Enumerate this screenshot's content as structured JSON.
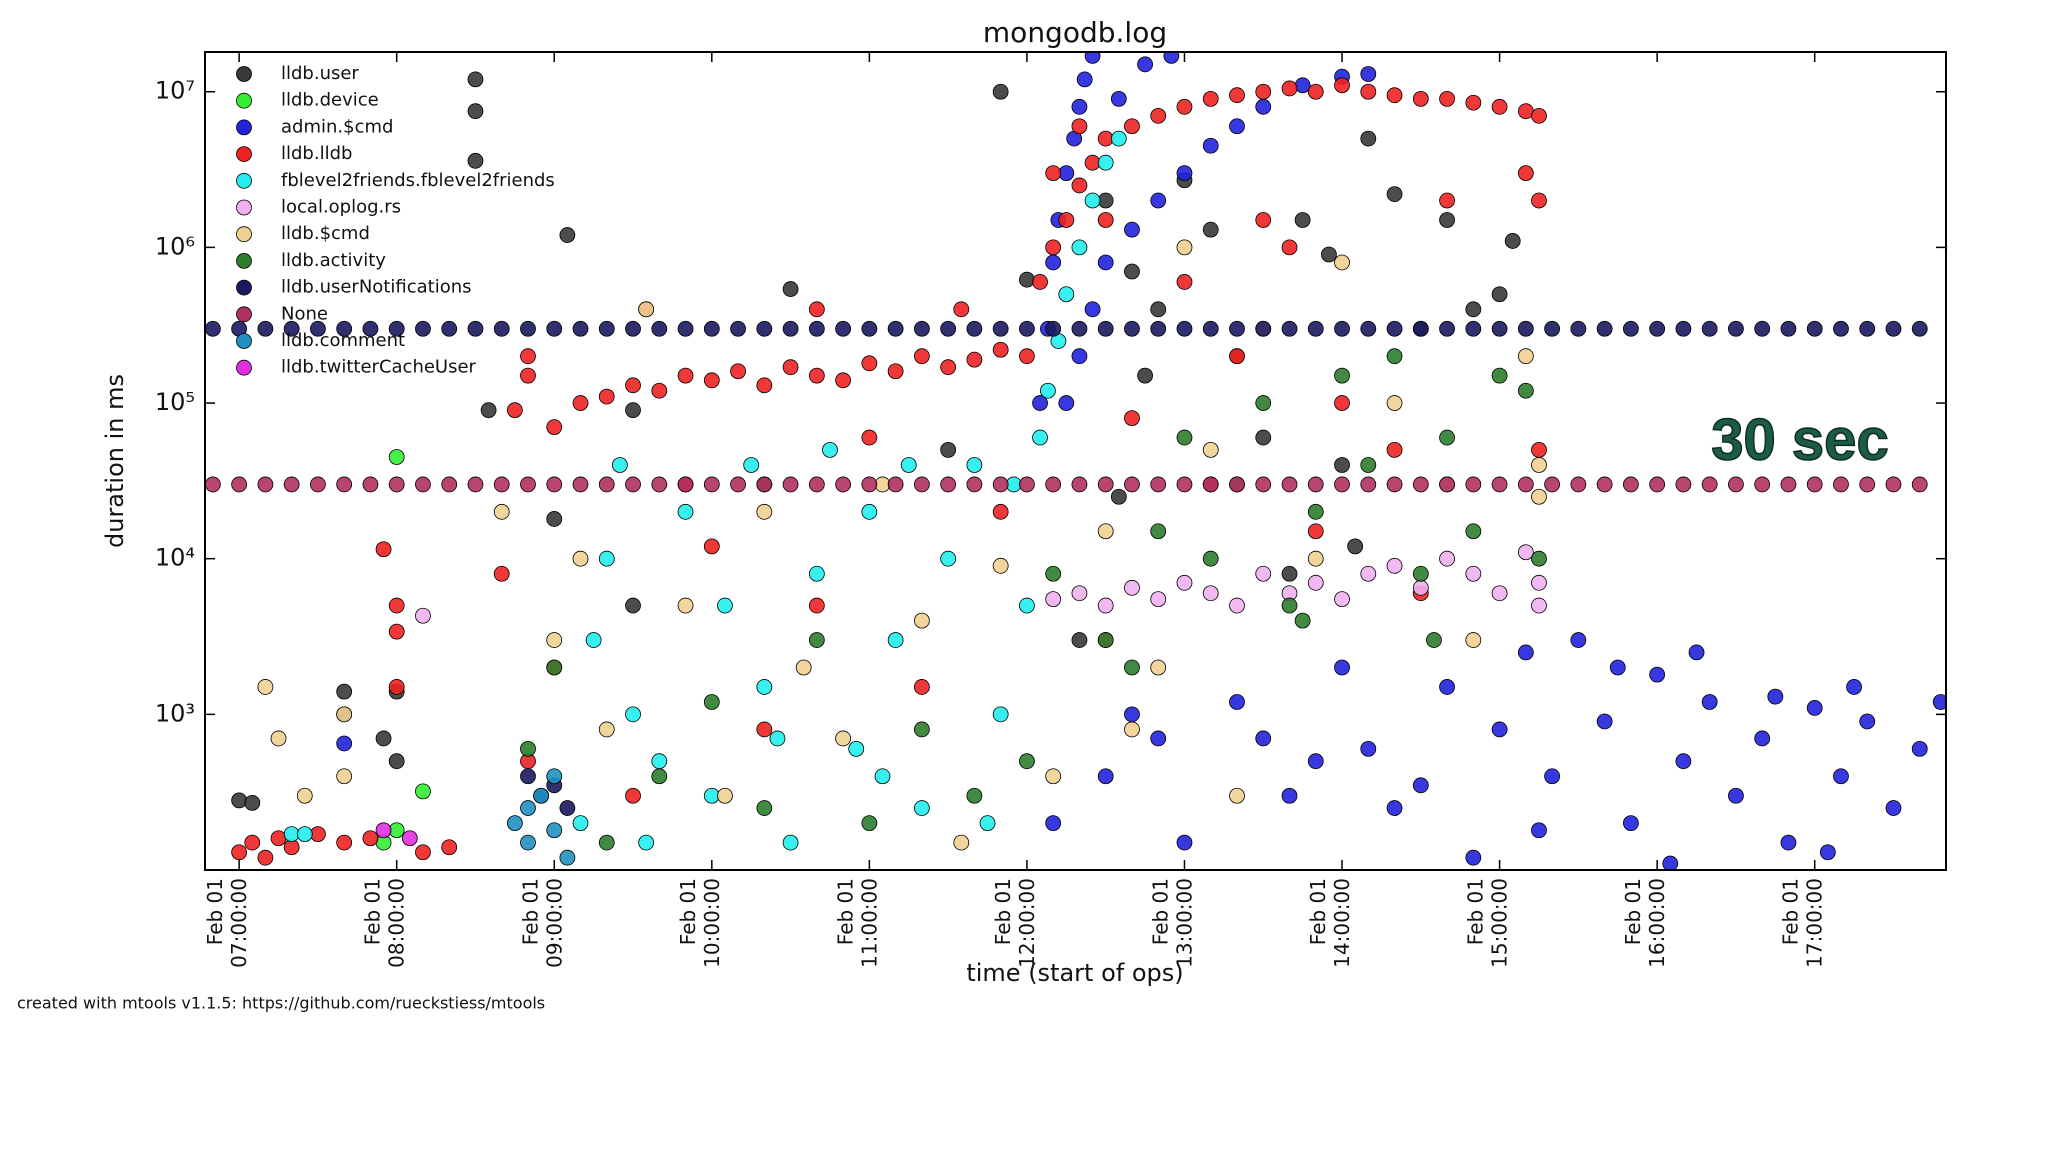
{
  "chart_data": {
    "type": "scatter",
    "title": "mongodb.log",
    "xlabel": "time (start of ops)",
    "ylabel": "duration in ms",
    "annotation": "30 sec",
    "footer": "created with mtools v1.1.5: https://github.com/rueckstiess/mtools",
    "yscale": "log",
    "legend": "upper left",
    "xlim": [
      "Feb 01 06:47:00",
      "Feb 01 17:50:00"
    ],
    "xticks": [
      "Feb 01 07:00:00",
      "Feb 01 08:00:00",
      "Feb 01 09:00:00",
      "Feb 01 10:00:00",
      "Feb 01 11:00:00",
      "Feb 01 12:00:00",
      "Feb 01 13:00:00",
      "Feb 01 14:00:00",
      "Feb 01 15:00:00",
      "Feb 01 16:00:00",
      "Feb 01 17:00:00"
    ],
    "ylim": [
      100,
      18000000
    ],
    "yticks": [
      {
        "value": 1000,
        "label": "10³"
      },
      {
        "value": 10000,
        "label": "10⁴"
      },
      {
        "value": 100000,
        "label": "10⁵"
      },
      {
        "value": 1000000,
        "label": "10⁶"
      },
      {
        "value": 10000000,
        "label": "10⁷"
      }
    ],
    "series": [
      {
        "name": "lldb.user",
        "color": "#383838",
        "x": [
          "07:00",
          "07:05",
          "07:40",
          "07:40",
          "07:55",
          "08:00",
          "08:00",
          "08:30",
          "08:30",
          "08:30",
          "09:05",
          "08:35",
          "09:00",
          "09:30",
          "10:30",
          "11:50",
          "12:00",
          "12:30",
          "12:40",
          "13:00",
          "12:50",
          "13:10",
          "13:45",
          "13:55",
          "14:10",
          "14:20",
          "14:30",
          "13:20",
          "12:45",
          "13:30",
          "14:00",
          "12:35",
          "14:40",
          "15:00",
          "15:05",
          "14:05",
          "13:40",
          "12:20",
          "14:50",
          "09:30",
          "10:20",
          "11:30"
        ],
        "values": [
          280,
          270,
          1400,
          1000,
          700,
          1400,
          500,
          12000000,
          7500000,
          3600000,
          1200000,
          90000,
          18000,
          5000,
          540000,
          10000000,
          620000,
          2000000,
          700000,
          2700000,
          400000,
          1300000,
          1500000,
          900000,
          5000000,
          2200000,
          300000,
          200000,
          150000,
          60000,
          40000,
          25000,
          1500000,
          500000,
          1100000,
          12000,
          8000,
          3000,
          400000,
          90000,
          30000,
          50000
        ]
      },
      {
        "name": "lldb.device",
        "color": "#33ee33",
        "x": [
          "08:00",
          "08:10",
          "08:00",
          "07:55"
        ],
        "values": [
          45000,
          320,
          180,
          150
        ]
      },
      {
        "name": "admin.$cmd",
        "color": "#2222dd",
        "x": [
          "12:05",
          "12:08",
          "12:10",
          "12:12",
          "12:15",
          "12:18",
          "12:20",
          "12:22",
          "12:25",
          "12:35",
          "12:45",
          "12:55",
          "12:15",
          "12:20",
          "12:25",
          "12:30",
          "12:40",
          "12:50",
          "13:00",
          "13:10",
          "13:20",
          "13:30",
          "13:45",
          "14:00",
          "14:10",
          "12:10",
          "12:30",
          "12:50",
          "13:00",
          "13:20",
          "13:40",
          "14:00",
          "14:10",
          "14:20",
          "14:40",
          "14:50",
          "15:00",
          "15:10",
          "15:20",
          "15:30",
          "15:40",
          "15:50",
          "16:00",
          "16:10",
          "16:20",
          "16:30",
          "16:40",
          "16:50",
          "17:00",
          "17:10",
          "17:20",
          "17:30",
          "17:40",
          "17:48",
          "15:45",
          "16:15",
          "16:45",
          "17:15",
          "13:30",
          "14:30",
          "15:15",
          "16:05",
          "17:05",
          "12:40",
          "13:50",
          "07:40"
        ],
        "values": [
          100000,
          300000,
          800000,
          1500000,
          3000000,
          5000000,
          8000000,
          12000000,
          17000000,
          9000000,
          15000000,
          17000000,
          100000,
          200000,
          400000,
          800000,
          1300000,
          2000000,
          3000000,
          4500000,
          6000000,
          8000000,
          11000000,
          12500000,
          13000000,
          200,
          400,
          700,
          150,
          1200,
          300,
          2000,
          600,
          250,
          1500,
          120,
          800,
          2500,
          400,
          3000,
          900,
          200,
          1800,
          500,
          1200,
          300,
          700,
          150,
          1100,
          400,
          900,
          250,
          600,
          1200,
          2000,
          2500,
          1300,
          1500,
          700,
          350,
          180,
          110,
          130,
          1000,
          500,
          650
        ]
      },
      {
        "name": "lldb.lldb",
        "color": "#ee2222",
        "x": [
          "07:00",
          "07:05",
          "07:10",
          "07:15",
          "07:20",
          "07:30",
          "07:40",
          "07:50",
          "08:10",
          "08:20",
          "07:55",
          "08:00",
          "08:00",
          "08:00",
          "08:45",
          "08:50",
          "08:50",
          "09:00",
          "09:10",
          "09:20",
          "09:30",
          "09:40",
          "09:50",
          "10:00",
          "10:10",
          "10:20",
          "10:30",
          "10:40",
          "10:50",
          "11:00",
          "11:10",
          "11:20",
          "11:30",
          "11:40",
          "11:50",
          "09:35",
          "10:40",
          "11:35",
          "08:40",
          "09:00",
          "09:50",
          "10:20",
          "10:40",
          "11:20",
          "11:50",
          "08:50",
          "09:30",
          "10:00",
          "11:00",
          "12:00",
          "12:05",
          "12:10",
          "12:15",
          "12:20",
          "12:25",
          "12:30",
          "12:40",
          "12:50",
          "13:00",
          "13:10",
          "13:20",
          "13:30",
          "13:40",
          "13:50",
          "14:00",
          "14:10",
          "14:20",
          "14:30",
          "14:40",
          "14:50",
          "15:00",
          "15:10",
          "15:15",
          "12:10",
          "12:20",
          "12:30",
          "13:00",
          "13:20",
          "13:40",
          "14:00",
          "14:20",
          "14:40",
          "15:10",
          "15:15",
          "12:40",
          "13:10",
          "13:50",
          "14:30",
          "15:15",
          "12:30",
          "13:30"
        ],
        "values": [
          130,
          150,
          120,
          160,
          140,
          170,
          150,
          160,
          130,
          140,
          11500,
          5000,
          3400,
          1500,
          90000,
          150000,
          200000,
          70000,
          100000,
          110000,
          130000,
          120000,
          150000,
          140000,
          160000,
          130000,
          170000,
          150000,
          140000,
          180000,
          160000,
          200000,
          170000,
          190000,
          220000,
          400000,
          400000,
          400000,
          8000,
          2000,
          30000,
          800,
          5000,
          1500,
          20000,
          500,
          300,
          12000,
          60000,
          200000,
          600000,
          1000000,
          1500000,
          2500000,
          3500000,
          5000000,
          6000000,
          7000000,
          8000000,
          9000000,
          9500000,
          10000000,
          10500000,
          10000000,
          11000000,
          10000000,
          9500000,
          9000000,
          9000000,
          8500000,
          8000000,
          7500000,
          7000000,
          3000000,
          6000000,
          1500000,
          600000,
          200000,
          1000000,
          100000,
          50000,
          2000000,
          3000000,
          2000000,
          80000,
          30000,
          15000,
          6000,
          50000,
          3000,
          1500000
        ]
      },
      {
        "name": "fblevel2friends.fblevel2friends",
        "color": "#22eeee",
        "x": [
          "09:10",
          "09:15",
          "09:20",
          "09:25",
          "09:30",
          "09:40",
          "09:50",
          "10:00",
          "10:05",
          "10:15",
          "10:20",
          "10:30",
          "10:40",
          "10:45",
          "10:55",
          "11:00",
          "11:10",
          "11:15",
          "11:20",
          "11:30",
          "11:40",
          "11:50",
          "11:55",
          "12:00",
          "09:35",
          "10:25",
          "11:05",
          "11:45",
          "12:08",
          "12:12",
          "12:15",
          "12:20",
          "12:25",
          "12:30",
          "12:05",
          "12:35",
          "07:20",
          "07:25"
        ],
        "values": [
          200,
          3000,
          10000,
          40000,
          1000,
          500,
          20000,
          300,
          5000,
          40000,
          1500,
          150,
          8000,
          50000,
          600,
          20000,
          3000,
          40000,
          250,
          10000,
          40000,
          1000,
          30000,
          5000,
          150,
          700,
          400,
          200,
          120000,
          250000,
          500000,
          1000000,
          2000000,
          3500000,
          60000,
          5000000,
          170,
          170
        ]
      },
      {
        "name": "local.oplog.rs",
        "color": "#f0b0f0",
        "x": [
          "08:10",
          "12:10",
          "12:20",
          "12:30",
          "12:40",
          "12:50",
          "13:00",
          "13:10",
          "13:20",
          "13:30",
          "13:40",
          "13:50",
          "14:00",
          "14:10",
          "14:20",
          "14:30",
          "14:40",
          "14:50",
          "15:00",
          "15:10",
          "15:15",
          "15:15"
        ],
        "values": [
          4300,
          5500,
          6000,
          5000,
          6500,
          5500,
          7000,
          6000,
          5000,
          8000,
          6000,
          7000,
          5500,
          8000,
          9000,
          6500,
          10000,
          8000,
          6000,
          11000,
          7000,
          5000
        ]
      },
      {
        "name": "lldb.$cmd",
        "color": "#f0d090",
        "x": [
          "07:10",
          "07:15",
          "07:25",
          "07:40",
          "07:40",
          "09:00",
          "08:40",
          "09:10",
          "09:20",
          "09:35",
          "09:50",
          "10:05",
          "10:20",
          "10:35",
          "10:50",
          "11:05",
          "11:20",
          "11:35",
          "11:50",
          "12:10",
          "12:30",
          "12:50",
          "13:00",
          "13:10",
          "13:30",
          "13:50",
          "14:00",
          "14:20",
          "14:40",
          "14:50",
          "15:10",
          "15:15",
          "15:15",
          "12:40",
          "13:20"
        ],
        "values": [
          1500,
          700,
          300,
          1000,
          400,
          3000,
          20000,
          10000,
          800,
          400000,
          5000,
          300,
          20000,
          2000,
          700,
          30000,
          4000,
          150,
          9000,
          400,
          15000,
          2000,
          1000000,
          50000,
          300000,
          10000,
          800000,
          100000,
          30000,
          3000,
          200000,
          40000,
          25000,
          800,
          300
        ]
      },
      {
        "name": "lldb.activity",
        "color": "#2e7d2e",
        "x": [
          "08:50",
          "09:00",
          "09:20",
          "09:40",
          "10:00",
          "10:20",
          "10:40",
          "11:00",
          "11:20",
          "11:40",
          "12:00",
          "12:10",
          "12:30",
          "12:50",
          "13:00",
          "13:10",
          "13:20",
          "13:30",
          "13:40",
          "13:50",
          "14:00",
          "14:10",
          "14:20",
          "14:30",
          "14:40",
          "14:50",
          "15:00",
          "15:10",
          "15:15",
          "12:40",
          "13:45",
          "14:35"
        ],
        "values": [
          600,
          2000,
          150,
          400,
          1200,
          250,
          3000,
          200,
          800,
          300,
          500,
          8000,
          3000,
          15000,
          60000,
          10000,
          30000,
          100000,
          5000,
          20000,
          150000,
          40000,
          200000,
          8000,
          60000,
          15000,
          150000,
          120000,
          10000,
          2000,
          4000,
          3000
        ]
      },
      {
        "name": "lldb.userNotifications",
        "color": "#1a1a60",
        "x": [
          "06:50",
          "07:00",
          "07:10",
          "07:20",
          "07:30",
          "07:40",
          "07:50",
          "08:00",
          "08:10",
          "08:20",
          "08:30",
          "08:40",
          "08:50",
          "09:00",
          "09:10",
          "09:20",
          "09:30",
          "09:40",
          "09:50",
          "10:00",
          "10:10",
          "10:20",
          "10:30",
          "10:40",
          "10:50",
          "11:00",
          "11:10",
          "11:20",
          "11:30",
          "11:40",
          "11:50",
          "12:00",
          "12:10",
          "12:20",
          "12:30",
          "12:40",
          "12:50",
          "13:00",
          "13:10",
          "13:20",
          "13:30",
          "13:40",
          "13:50",
          "14:00",
          "14:10",
          "14:20",
          "14:30",
          "14:40",
          "14:50",
          "15:00",
          "15:10",
          "15:20",
          "15:30",
          "15:40",
          "15:50",
          "16:00",
          "16:10",
          "16:20",
          "16:30",
          "16:40",
          "16:50",
          "17:00",
          "17:10",
          "17:20",
          "17:30",
          "17:40",
          "08:50",
          "09:00",
          "08:55",
          "09:05"
        ],
        "values": [
          300000,
          300000,
          300000,
          300000,
          300000,
          300000,
          300000,
          300000,
          300000,
          300000,
          300000,
          300000,
          300000,
          300000,
          300000,
          300000,
          300000,
          300000,
          300000,
          300000,
          300000,
          300000,
          300000,
          300000,
          300000,
          300000,
          300000,
          300000,
          300000,
          300000,
          300000,
          300000,
          300000,
          300000,
          300000,
          300000,
          300000,
          300000,
          300000,
          300000,
          300000,
          300000,
          300000,
          300000,
          300000,
          300000,
          300000,
          300000,
          300000,
          300000,
          300000,
          300000,
          300000,
          300000,
          300000,
          300000,
          300000,
          300000,
          300000,
          300000,
          300000,
          300000,
          300000,
          300000,
          300000,
          300000,
          400,
          350,
          300,
          250
        ]
      },
      {
        "name": "None",
        "color": "#b03060",
        "x": [
          "06:50",
          "07:00",
          "07:10",
          "07:20",
          "07:30",
          "07:40",
          "07:50",
          "08:00",
          "08:10",
          "08:20",
          "08:30",
          "08:40",
          "08:50",
          "09:00",
          "09:10",
          "09:20",
          "09:30",
          "09:40",
          "09:50",
          "10:00",
          "10:10",
          "10:20",
          "10:30",
          "10:40",
          "10:50",
          "11:00",
          "11:10",
          "11:20",
          "11:30",
          "11:40",
          "11:50",
          "12:00",
          "12:10",
          "12:20",
          "12:30",
          "12:40",
          "12:50",
          "13:00",
          "13:10",
          "13:20",
          "13:30",
          "13:40",
          "13:50",
          "14:00",
          "14:10",
          "14:20",
          "14:30",
          "14:40",
          "14:50",
          "15:00",
          "15:10",
          "15:20",
          "15:30",
          "15:40",
          "15:50",
          "16:00",
          "16:10",
          "16:20",
          "16:30",
          "16:40",
          "16:50",
          "17:00",
          "17:10",
          "17:20",
          "17:30",
          "17:40"
        ],
        "values": [
          30000,
          30000,
          30000,
          30000,
          30000,
          30000,
          30000,
          30000,
          30000,
          30000,
          30000,
          30000,
          30000,
          30000,
          30000,
          30000,
          30000,
          30000,
          30000,
          30000,
          30000,
          30000,
          30000,
          30000,
          30000,
          30000,
          30000,
          30000,
          30000,
          30000,
          30000,
          30000,
          30000,
          30000,
          30000,
          30000,
          30000,
          30000,
          30000,
          30000,
          30000,
          30000,
          30000,
          30000,
          30000,
          30000,
          30000,
          30000,
          30000,
          30000,
          30000,
          30000,
          30000,
          30000,
          30000,
          30000,
          30000,
          30000,
          30000,
          30000,
          30000,
          30000,
          30000,
          30000,
          30000,
          30000
        ]
      },
      {
        "name": "lldb.comment",
        "color": "#2090c0",
        "x": [
          "08:45",
          "08:50",
          "08:55",
          "09:00",
          "09:05",
          "08:50",
          "09:00"
        ],
        "values": [
          200,
          150,
          300,
          180,
          120,
          250,
          400
        ]
      },
      {
        "name": "lldb.twitterCacheUser",
        "color": "#e030e0",
        "x": [
          "08:05",
          "07:55"
        ],
        "values": [
          160,
          180
        ]
      }
    ]
  }
}
